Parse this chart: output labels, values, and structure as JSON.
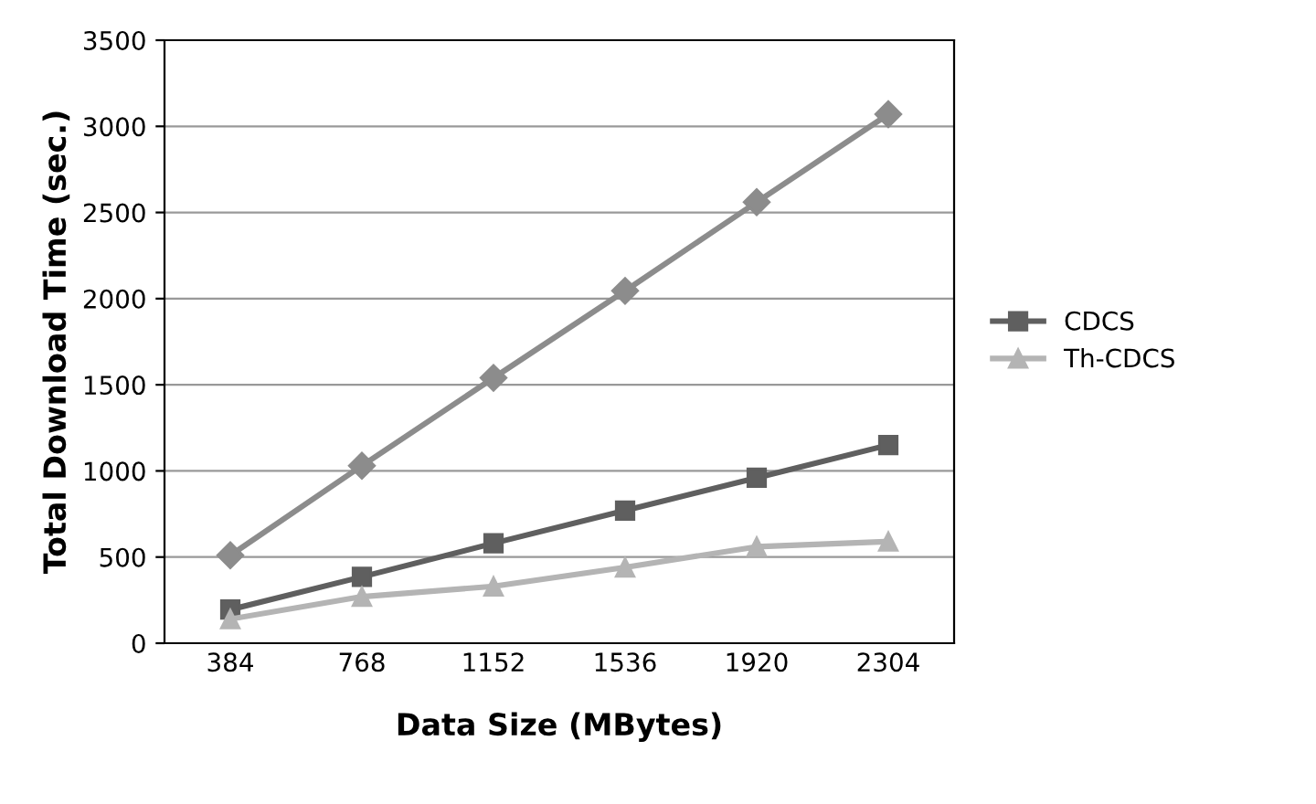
{
  "chart_data": {
    "type": "line",
    "xlabel": "Data Size (MBytes)",
    "ylabel": "Total Download Time (sec.)",
    "categories": [
      "384",
      "768",
      "1152",
      "1536",
      "1920",
      "2304"
    ],
    "series": [
      {
        "color": "#8c8c8c",
        "marker": "diamond",
        "values": [
          510,
          1030,
          1540,
          2045,
          2560,
          3070
        ]
      },
      {
        "name": "CDCS",
        "color": "#5f5f5f",
        "marker": "square",
        "values": [
          195,
          385,
          580,
          770,
          960,
          1150
        ]
      },
      {
        "name": "Th-CDCS",
        "color": "#b4b4b4",
        "marker": "triangle",
        "values": [
          140,
          270,
          330,
          440,
          560,
          590
        ]
      }
    ],
    "ylim": [
      0,
      3500
    ],
    "yticks": [
      0,
      500,
      1000,
      1500,
      2000,
      2500,
      3000,
      3500
    ],
    "grid": "y",
    "legend": "right"
  }
}
